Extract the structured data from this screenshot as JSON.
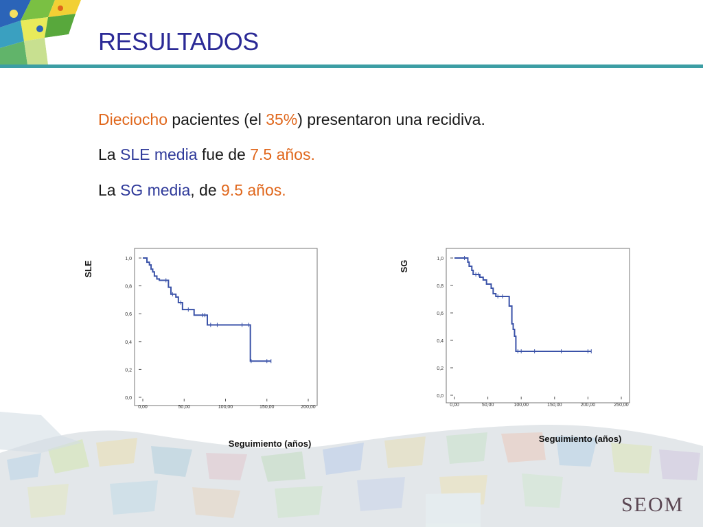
{
  "slide": {
    "title": "RESULTADOS",
    "logo_text": "SEOM"
  },
  "text": {
    "line1": {
      "part1": "Dieciocho",
      "part2": " pacientes (el ",
      "part3": "35%",
      "part4": ") presentaron una recidiva."
    },
    "line2": {
      "part1": "La ",
      "part2": "SLE media",
      "part3": " fue de ",
      "part4": "7.5 años."
    },
    "line3": {
      "part1": "La ",
      "part2": "SG media",
      "part3": ", de ",
      "part4": "9.5 años."
    }
  },
  "colors": {
    "title": "#2b2a96",
    "accent_orange": "#e0671c",
    "accent_blue": "#2f3a9a",
    "curve": "#3a52a8",
    "rule": "#3c9ea4"
  },
  "chart_data": [
    {
      "type": "line",
      "step": true,
      "ylabel_side": "SLE",
      "xlabel": "Seguimiento (años)",
      "xlim": [
        0,
        200
      ],
      "ylim": [
        0,
        1
      ],
      "x_ticks": [
        "0,00",
        "50,00",
        "100,00",
        "150,00",
        "200,00"
      ],
      "y_ticks": [
        "0,0",
        "0,2",
        "0,4",
        "0,6",
        "0,8",
        "1,0"
      ],
      "series": [
        {
          "x": [
            0,
            5,
            8,
            10,
            12,
            14,
            17,
            20,
            28,
            31,
            34,
            36,
            40,
            43,
            46,
            48,
            55,
            62,
            72,
            75,
            78,
            82,
            90,
            120,
            128,
            130,
            131,
            150,
            155
          ],
          "y": [
            1.0,
            0.97,
            0.95,
            0.92,
            0.9,
            0.87,
            0.85,
            0.84,
            0.84,
            0.79,
            0.74,
            0.74,
            0.72,
            0.68,
            0.68,
            0.63,
            0.63,
            0.59,
            0.59,
            0.59,
            0.52,
            0.52,
            0.52,
            0.52,
            0.52,
            0.26,
            0.26,
            0.26,
            0.26
          ]
        }
      ]
    },
    {
      "type": "line",
      "step": true,
      "ylabel_side": "SG",
      "xlabel": "Seguimiento (años)",
      "xlim": [
        0,
        250
      ],
      "ylim": [
        0,
        1
      ],
      "x_ticks": [
        "0,00",
        "50,00",
        "100,00",
        "150,00",
        "200,00",
        "250,00"
      ],
      "y_ticks": [
        "0,0",
        "0,2",
        "0,4",
        "0,6",
        "0,8",
        "1,0"
      ],
      "series": [
        {
          "x": [
            0,
            15,
            20,
            22,
            26,
            28,
            32,
            36,
            38,
            43,
            48,
            55,
            58,
            62,
            65,
            72,
            82,
            86,
            88,
            90,
            92,
            95,
            100,
            120,
            160,
            200,
            205
          ],
          "y": [
            1.0,
            1.0,
            0.97,
            0.94,
            0.91,
            0.88,
            0.88,
            0.88,
            0.86,
            0.84,
            0.81,
            0.78,
            0.74,
            0.72,
            0.72,
            0.72,
            0.65,
            0.52,
            0.48,
            0.43,
            0.32,
            0.32,
            0.32,
            0.32,
            0.32,
            0.32,
            0.32
          ]
        }
      ]
    }
  ]
}
